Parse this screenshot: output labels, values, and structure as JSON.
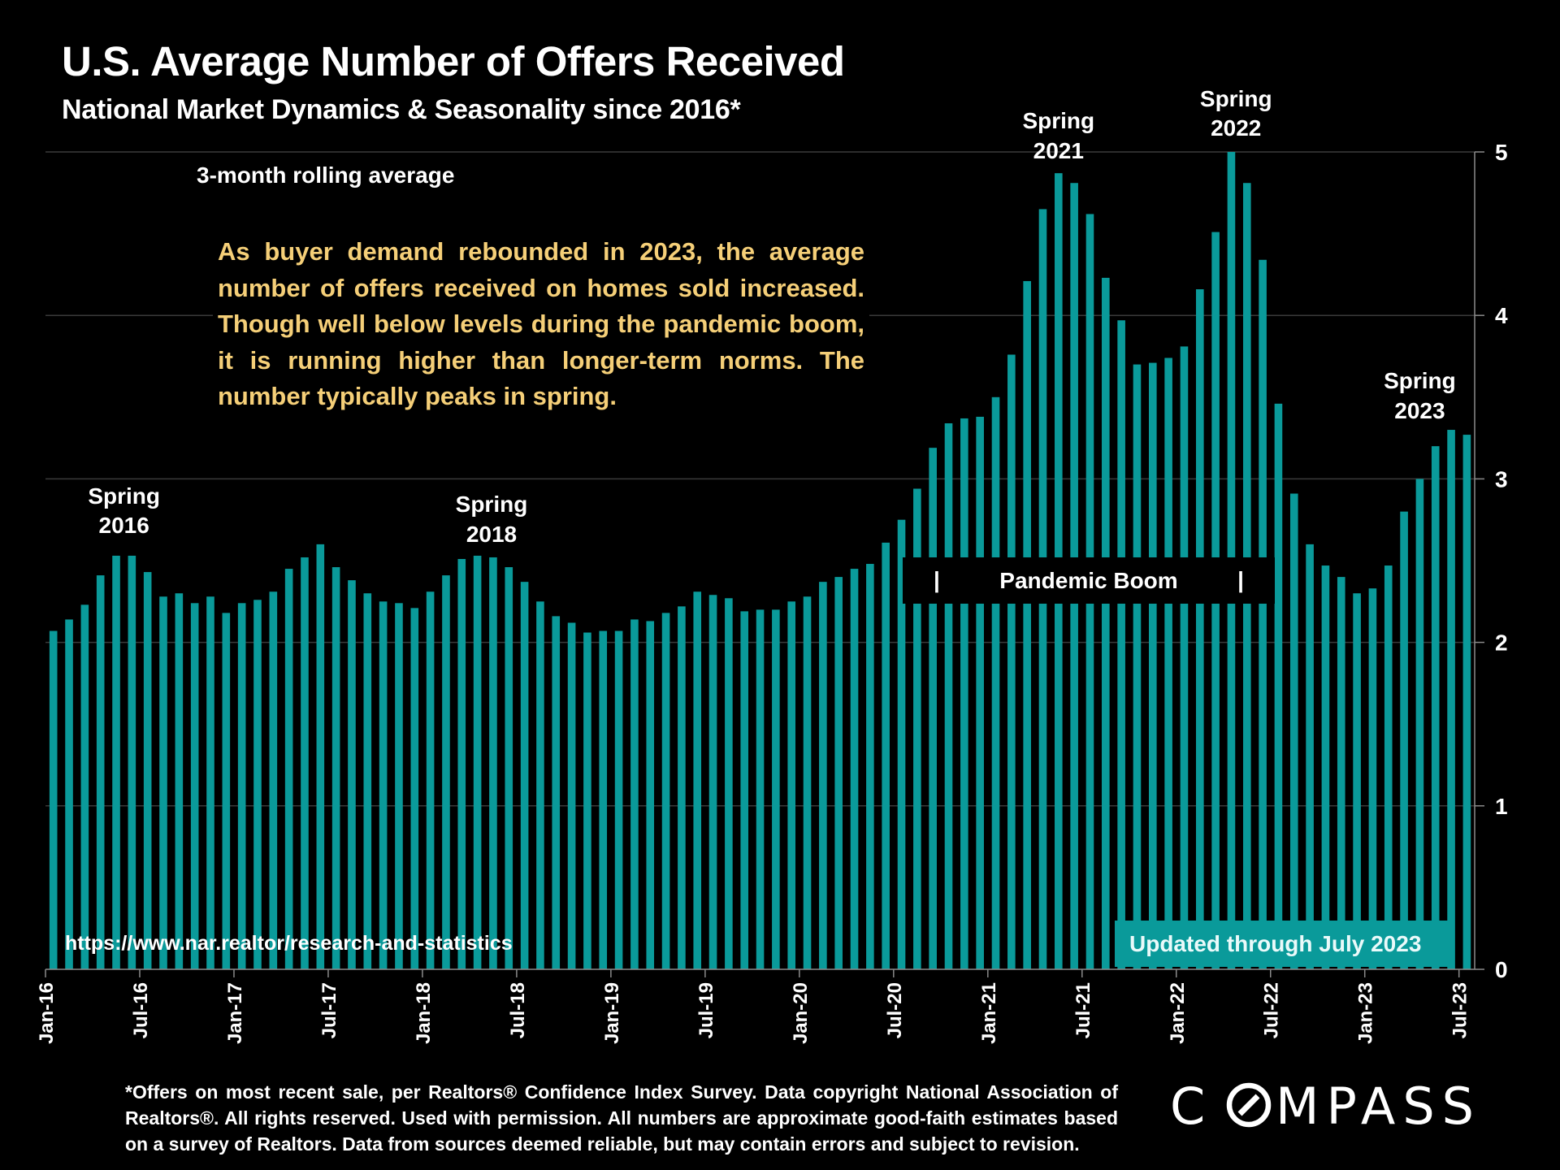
{
  "header": {
    "title": "U.S. Average Number of Offers Received",
    "subtitle": "National Market Dynamics & Seasonality since 2016*"
  },
  "annotations": {
    "rolling_label": "3-month rolling average",
    "note": "As buyer demand rebounded in 2023, the average number of offers received on homes sold increased. Though well below levels during the pandemic boom, it is running higher than longer-term norms. The number typically peaks in spring.",
    "pandemic_label": "Pandemic Boom",
    "pandemic_bracket": "|",
    "source_url": "https://www.nar.realtor/research-and-statistics",
    "updated": "Updated through July 2023",
    "spring_labels": [
      {
        "line1": "Spring",
        "line2": "2016",
        "month_index": 4.5
      },
      {
        "line1": "Spring",
        "line2": "2018",
        "month_index": 27.9
      },
      {
        "line1": "Spring",
        "line2": "2021",
        "month_index": 64.0
      },
      {
        "line1": "Spring",
        "line2": "2022",
        "month_index": 75.3
      },
      {
        "line1": "Spring",
        "line2": "2023",
        "month_index": 87.0
      }
    ]
  },
  "footnote": "*Offers on most recent sale, per Realtors® Confidence Index Survey. Data copyright National Association of Realtors®. All rights reserved. Used with permission. All numbers are approximate good-faith estimates based on a survey of Realtors. Data from sources deemed reliable, but may contain errors and subject to revision.",
  "brand": {
    "logo_text": "COMPASS",
    "logo_icon": "compass-logo-icon"
  },
  "colors": {
    "bar": "#0a9a9a",
    "note_text": "#f5cf78",
    "background": "#000000"
  },
  "chart_data": {
    "type": "bar",
    "title": "U.S. Average Number of Offers Received",
    "subtitle": "National Market Dynamics & Seasonality since 2016*",
    "xlabel": "",
    "ylabel": "",
    "ylim": [
      0,
      5
    ],
    "yticks": [
      0,
      1,
      2,
      3,
      4,
      5
    ],
    "y_axis_side": "right",
    "grid": true,
    "xtick_labels": [
      "Jan-16",
      "Jul-16",
      "Jan-17",
      "Jul-17",
      "Jan-18",
      "Jul-18",
      "Jan-19",
      "Jul-19",
      "Jan-20",
      "Jul-20",
      "Jan-21",
      "Jul-21",
      "Jan-22",
      "Jul-22",
      "Jan-23",
      "Jul-23"
    ],
    "xtick_every_months": 6,
    "start": "Jan-16",
    "end": "Jul-23",
    "series": [
      {
        "name": "Average number of offers (3-month rolling average)",
        "values": [
          2.07,
          2.14,
          2.23,
          2.41,
          2.53,
          2.53,
          2.43,
          2.28,
          2.3,
          2.24,
          2.28,
          2.18,
          2.24,
          2.26,
          2.31,
          2.45,
          2.52,
          2.6,
          2.46,
          2.38,
          2.3,
          2.25,
          2.24,
          2.21,
          2.31,
          2.41,
          2.51,
          2.53,
          2.52,
          2.46,
          2.37,
          2.25,
          2.16,
          2.12,
          2.06,
          2.07,
          2.07,
          2.14,
          2.13,
          2.18,
          2.22,
          2.31,
          2.29,
          2.27,
          2.19,
          2.2,
          2.2,
          2.25,
          2.28,
          2.37,
          2.4,
          2.45,
          2.48,
          2.61,
          2.75,
          2.94,
          3.19,
          3.34,
          3.37,
          3.38,
          3.5,
          3.76,
          4.21,
          4.65,
          4.87,
          4.81,
          4.62,
          4.23,
          3.97,
          3.7,
          3.71,
          3.74,
          3.81,
          4.16,
          4.51,
          5.0,
          4.81,
          4.34,
          3.46,
          2.91,
          2.6,
          2.47,
          2.4,
          2.3,
          2.33,
          2.47,
          2.8,
          3.0,
          3.2,
          3.3,
          3.27
        ]
      }
    ],
    "annotations": [
      "Spring 2016",
      "Spring 2018",
      "Spring 2021",
      "Spring 2022",
      "Spring 2023",
      "Pandemic Boom",
      "3-month rolling average",
      "Updated through July 2023"
    ]
  }
}
